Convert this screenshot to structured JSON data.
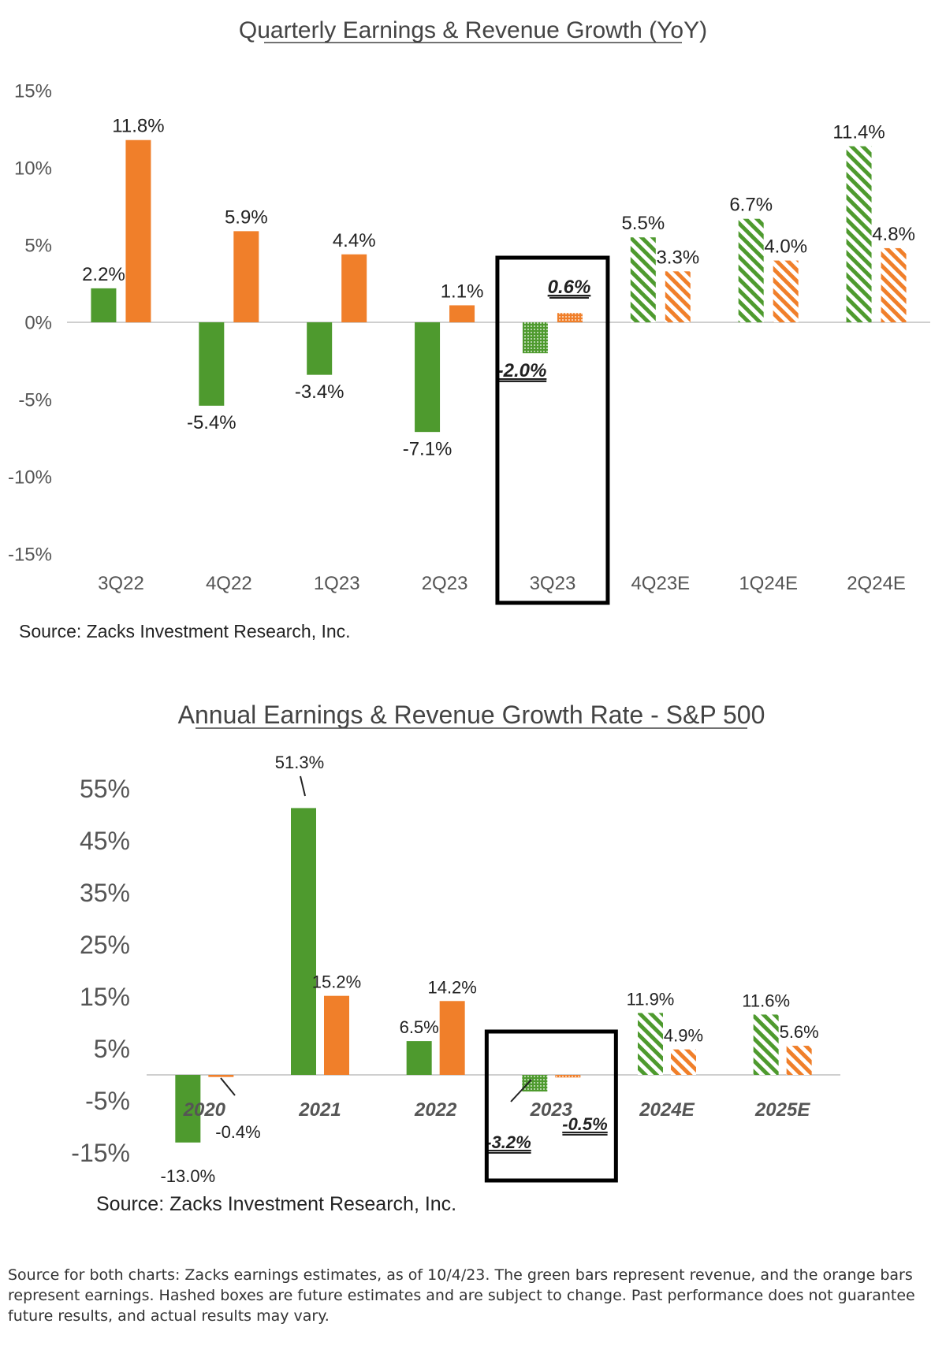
{
  "colors": {
    "revenue": "#4e9a2e",
    "earnings": "#f07f2a",
    "axis": "#cfcfcf",
    "highlight": "#000000"
  },
  "chart_data": [
    {
      "type": "bar",
      "title": "Quarterly Earnings & Revenue Growth (YoY)",
      "categories": [
        "3Q22",
        "4Q22",
        "1Q23",
        "2Q23",
        "3Q23",
        "4Q23E",
        "1Q24E",
        "2Q24E"
      ],
      "series": [
        {
          "values": [
            2.2,
            -5.4,
            -3.4,
            -7.1,
            -2.0,
            5.5,
            6.7,
            11.4
          ],
          "labels": [
            "2.2%",
            "-5.4%",
            "-3.4%",
            "-7.1%",
            "-2.0%",
            "5.5%",
            "6.7%",
            "11.4%"
          ]
        },
        {
          "values": [
            11.8,
            5.9,
            4.4,
            1.1,
            0.6,
            3.3,
            4.0,
            4.8
          ],
          "labels": [
            "11.8%",
            "5.9%",
            "4.4%",
            "1.1%",
            "0.6%",
            "3.3%",
            "4.0%",
            "4.8%"
          ]
        }
      ],
      "ylim": [
        -15,
        15
      ],
      "yticks": [
        15,
        10,
        5,
        0,
        -5,
        -10,
        -15
      ],
      "ytick_labels": [
        "15%",
        "10%",
        "5%",
        "0%",
        "-5%",
        "-10%",
        "-15%"
      ],
      "highlighted_category": "3Q23",
      "estimate_categories": [
        "4Q23E",
        "1Q24E",
        "2Q24E"
      ],
      "source": "Source: Zacks Investment Research, Inc."
    },
    {
      "type": "bar",
      "title": "Annual Earnings & Revenue Growth Rate - S&P 500",
      "categories": [
        "2020",
        "2021",
        "2022",
        "2023",
        "2024E",
        "2025E"
      ],
      "series": [
        {
          "values": [
            -13.0,
            51.3,
            6.5,
            -3.2,
            11.9,
            11.6
          ],
          "labels": [
            "-13.0%",
            "51.3%",
            "6.5%",
            "-3.2%",
            "11.9%",
            "11.6%"
          ]
        },
        {
          "values": [
            -0.4,
            15.2,
            14.2,
            -0.5,
            4.9,
            5.6
          ],
          "labels": [
            "-0.4%",
            "15.2%",
            "14.2%",
            "-0.5%",
            "4.9%",
            "5.6%"
          ]
        }
      ],
      "ylim": [
        -15,
        60
      ],
      "yticks": [
        55,
        45,
        35,
        25,
        15,
        5,
        -5,
        -15
      ],
      "ytick_labels": [
        "55%",
        "45%",
        "35%",
        "25%",
        "15%",
        "5%",
        "-5%",
        "-15%"
      ],
      "highlighted_category": "2023",
      "estimate_categories": [
        "2024E",
        "2025E"
      ],
      "source": "Source: Zacks Investment Research, Inc."
    }
  ],
  "footnote": "Source for both charts: Zacks earnings estimates, as of 10/4/23. The green bars represent revenue, and the orange bars represent earnings. Hashed boxes are future estimates and are subject to change. Past performance does not guarantee future results, and actual results may vary."
}
